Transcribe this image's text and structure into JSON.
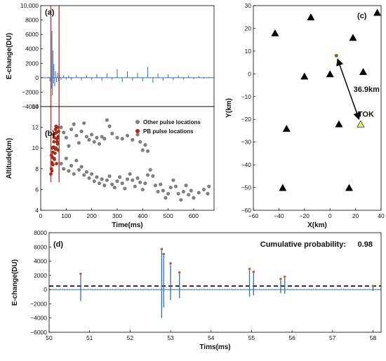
{
  "colors": {
    "waveform": "#2f6fb5",
    "other_pulse": "#808080",
    "pb_pulse": "#a52a1f",
    "vertical_marker": "#b03a2e",
    "station": "#000000",
    "tok_station": "#f0f060",
    "event": "#a05a10",
    "threshold": "#000000",
    "peak_marker": "#c0603a"
  },
  "chart_data": [
    {
      "id": "a",
      "type": "line",
      "panel_label": "(a)",
      "ylabel": "E-change(DU)",
      "xlim": [
        0,
        680
      ],
      "ylim": [
        -4000,
        10000
      ],
      "yticks": [
        -4000,
        -2000,
        0,
        2000,
        4000,
        6000,
        8000,
        10000
      ],
      "ytick_labels": [
        "−4000",
        "−2000",
        "0",
        "2000",
        "4000",
        "6000",
        "8000",
        "10,000"
      ],
      "vertical_markers_x": [
        40,
        72
      ],
      "series": [
        {
          "x": [
            0,
            30,
            36,
            40,
            42,
            44,
            46,
            48,
            50,
            52,
            55,
            58,
            62,
            66,
            70,
            74,
            80,
            90,
            100,
            110,
            120,
            140,
            160,
            180,
            200,
            220,
            240,
            260,
            280,
            300,
            320,
            340,
            360,
            380,
            400,
            420,
            440,
            460,
            480,
            500,
            520,
            540,
            560,
            580,
            600,
            620,
            640,
            660
          ],
          "y": [
            0,
            150,
            -500,
            2200,
            -1500,
            6500,
            -2500,
            3800,
            -800,
            1900,
            -1200,
            900,
            -600,
            700,
            -500,
            400,
            -300,
            350,
            -250,
            300,
            -300,
            400,
            -350,
            350,
            -300,
            500,
            -400,
            600,
            -300,
            1200,
            -600,
            900,
            -400,
            700,
            -500,
            1500,
            -700,
            600,
            -400,
            500,
            -300,
            400,
            -250,
            300,
            -200,
            250,
            -150,
            100
          ]
        }
      ]
    },
    {
      "id": "b",
      "type": "scatter",
      "panel_label": "(b)",
      "xlabel": "Time(ms)",
      "ylabel": "Altitude(km)",
      "xlim": [
        0,
        680
      ],
      "ylim": [
        4,
        14
      ],
      "xticks": [
        0,
        100,
        200,
        300,
        400,
        500,
        600
      ],
      "yticks": [
        4,
        6,
        8,
        10,
        12,
        14
      ],
      "legend_position": "top-right",
      "series": [
        {
          "name": "Other pulse locations",
          "points": [
            [
              80,
              12.0
            ],
            [
              90,
              11.5
            ],
            [
              100,
              11.0
            ],
            [
              110,
              10.2
            ],
            [
              120,
              11.8
            ],
            [
              130,
              12.3
            ],
            [
              140,
              11.2
            ],
            [
              150,
              10.5
            ],
            [
              160,
              11.6
            ],
            [
              170,
              12.4
            ],
            [
              180,
              11.1
            ],
            [
              190,
              10.8
            ],
            [
              200,
              11.3
            ],
            [
              210,
              10.6
            ],
            [
              220,
              11.0
            ],
            [
              230,
              10.4
            ],
            [
              240,
              11.1
            ],
            [
              250,
              10.9
            ],
            [
              260,
              12.7
            ],
            [
              270,
              12.1
            ],
            [
              280,
              11.4
            ],
            [
              300,
              11.0
            ],
            [
              320,
              10.9
            ],
            [
              340,
              11.2
            ],
            [
              360,
              10.8
            ],
            [
              380,
              11.3
            ],
            [
              390,
              10.6
            ],
            [
              400,
              9.8
            ],
            [
              410,
              10.3
            ],
            [
              420,
              9.7
            ],
            [
              80,
              8.5
            ],
            [
              90,
              8.0
            ],
            [
              100,
              9.0
            ],
            [
              110,
              7.8
            ],
            [
              120,
              8.3
            ],
            [
              130,
              7.5
            ],
            [
              140,
              8.8
            ],
            [
              150,
              7.9
            ],
            [
              160,
              8.2
            ],
            [
              170,
              7.4
            ],
            [
              180,
              7.7
            ],
            [
              190,
              7.1
            ],
            [
              200,
              7.5
            ],
            [
              210,
              6.8
            ],
            [
              220,
              7.2
            ],
            [
              230,
              6.6
            ],
            [
              240,
              7.0
            ],
            [
              250,
              6.4
            ],
            [
              260,
              6.9
            ],
            [
              270,
              7.3
            ],
            [
              280,
              6.5
            ],
            [
              290,
              6.2
            ],
            [
              300,
              6.8
            ],
            [
              310,
              7.2
            ],
            [
              320,
              6.6
            ],
            [
              330,
              6.1
            ],
            [
              340,
              7.0
            ],
            [
              350,
              7.5
            ],
            [
              360,
              6.9
            ],
            [
              370,
              6.3
            ],
            [
              380,
              7.1
            ],
            [
              390,
              6.7
            ],
            [
              400,
              6.0
            ],
            [
              410,
              6.6
            ],
            [
              420,
              7.4
            ],
            [
              430,
              7.9
            ],
            [
              440,
              7.3
            ],
            [
              450,
              6.4
            ],
            [
              460,
              5.8
            ],
            [
              470,
              6.5
            ],
            [
              480,
              5.9
            ],
            [
              490,
              5.2
            ],
            [
              500,
              5.6
            ],
            [
              510,
              6.2
            ],
            [
              520,
              6.9
            ],
            [
              530,
              6.3
            ],
            [
              540,
              5.6
            ],
            [
              550,
              5.0
            ],
            [
              560,
              5.8
            ],
            [
              570,
              6.4
            ],
            [
              580,
              5.5
            ],
            [
              590,
              5.9
            ],
            [
              600,
              5.2
            ],
            [
              620,
              5.7
            ],
            [
              640,
              6.0
            ],
            [
              655,
              5.6
            ],
            [
              660,
              6.3
            ]
          ]
        },
        {
          "name": "PB pulse locations",
          "points": [
            [
              40,
              7.5
            ],
            [
              42,
              8.0
            ],
            [
              44,
              8.6
            ],
            [
              46,
              9.1
            ],
            [
              48,
              9.6
            ],
            [
              50,
              10.1
            ],
            [
              52,
              10.6
            ],
            [
              54,
              11.0
            ],
            [
              56,
              11.4
            ],
            [
              58,
              11.8
            ],
            [
              60,
              12.1
            ],
            [
              62,
              11.5
            ],
            [
              64,
              10.9
            ],
            [
              66,
              10.4
            ],
            [
              68,
              9.8
            ],
            [
              44,
              7.8
            ],
            [
              48,
              8.4
            ],
            [
              52,
              9.0
            ],
            [
              56,
              9.5
            ],
            [
              60,
              10.0
            ],
            [
              64,
              10.6
            ],
            [
              68,
              11.1
            ],
            [
              70,
              11.6
            ],
            [
              50,
              11.3
            ],
            [
              54,
              8.9
            ],
            [
              58,
              9.9
            ],
            [
              62,
              8.5
            ],
            [
              46,
              10.0
            ],
            [
              66,
              12.0
            ],
            [
              42,
              9.3
            ]
          ]
        }
      ]
    },
    {
      "id": "c",
      "type": "scatter",
      "panel_label": "(c)",
      "xlabel": "X(km)",
      "ylabel": "Y(km)",
      "xlim": [
        -60,
        40
      ],
      "ylim": [
        -60,
        30
      ],
      "xticks": [
        -60,
        -40,
        -20,
        0,
        20,
        40
      ],
      "yticks": [
        -60,
        -50,
        -40,
        -30,
        -20,
        -10,
        0,
        10,
        20,
        30
      ],
      "ytick_labels": [
        "−60",
        "−50",
        "−40",
        "−30",
        "−20",
        "−10",
        "0",
        "10",
        "20",
        "30"
      ],
      "xtick_labels": [
        "−60",
        "−40",
        "−20",
        "0",
        "20",
        "40"
      ],
      "stations": [
        [
          -43,
          18
        ],
        [
          -15,
          25
        ],
        [
          18,
          16
        ],
        [
          37,
          27
        ],
        [
          -20,
          -1
        ],
        [
          0,
          0
        ],
        [
          26,
          1
        ],
        [
          7,
          -22
        ],
        [
          -34,
          -24
        ],
        [
          -37,
          -50
        ],
        [
          15,
          -50
        ]
      ],
      "tok_station": {
        "x": 24,
        "y": -22,
        "label": "TOK"
      },
      "event": {
        "x": 5,
        "y": 8
      },
      "distance_label": "36.9km"
    },
    {
      "id": "d",
      "type": "line",
      "panel_label": "(d)",
      "xlabel": "Tims(ms)",
      "ylabel": "E-change(DU)",
      "xlim": [
        50,
        58.2
      ],
      "ylim": [
        -6000,
        8000
      ],
      "xticks": [
        50,
        51,
        52,
        53,
        54,
        55,
        56,
        57,
        58
      ],
      "yticks": [
        -6000,
        -4000,
        -2000,
        0,
        2000,
        4000,
        6000,
        8000
      ],
      "ytick_labels": [
        "−6000",
        "−4000",
        "−2000",
        "0",
        "2000",
        "4000",
        "6000",
        "8000"
      ],
      "threshold": 500,
      "annotation_label": "Cumulative probability:",
      "annotation_value": "0.98",
      "pulses": [
        {
          "x": 50.78,
          "peak": 2000,
          "trough": -1600
        },
        {
          "x": 52.78,
          "peak": 5500,
          "trough": -4000
        },
        {
          "x": 52.83,
          "peak": 4800,
          "trough": -2500
        },
        {
          "x": 53.0,
          "peak": 3500,
          "trough": -1500
        },
        {
          "x": 53.22,
          "peak": 2200,
          "trough": -1200
        },
        {
          "x": 54.95,
          "peak": 2700,
          "trough": -1000
        },
        {
          "x": 55.05,
          "peak": 2300,
          "trough": -800
        },
        {
          "x": 55.72,
          "peak": 1300,
          "trough": -500
        },
        {
          "x": 55.82,
          "peak": 1600,
          "trough": -600
        },
        {
          "x": 58.0,
          "peak": 300,
          "trough": -200
        }
      ]
    }
  ]
}
